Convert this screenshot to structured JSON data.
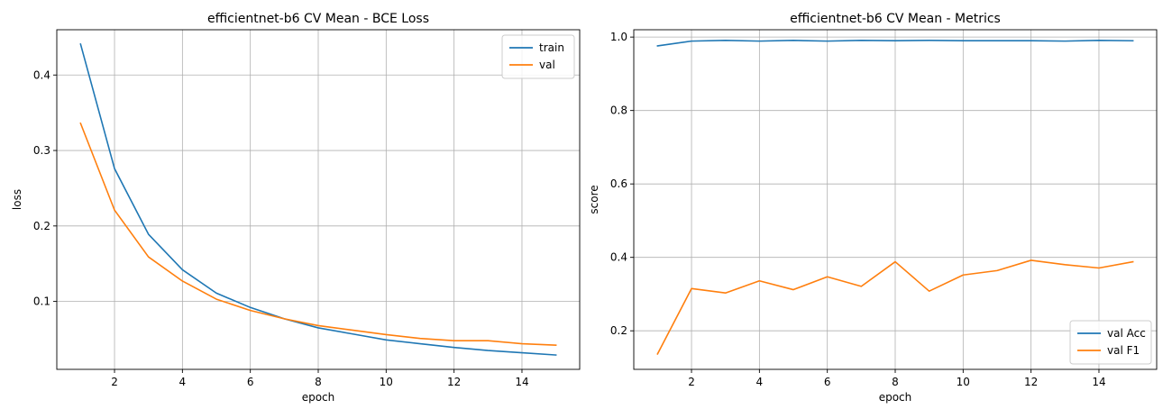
{
  "chart_data": [
    {
      "type": "line",
      "title": "efficientnet-b6 CV Mean - BCE Loss",
      "xlabel": "epoch",
      "ylabel": "loss",
      "xlim": [
        0.3,
        15.7
      ],
      "ylim": [
        0.01,
        0.46
      ],
      "xticks": [
        2,
        4,
        6,
        8,
        10,
        12,
        14
      ],
      "yticks": [
        0.1,
        0.2,
        0.3,
        0.4
      ],
      "grid": true,
      "legend_position": "top-right",
      "x": [
        1,
        2,
        3,
        4,
        5,
        6,
        7,
        8,
        9,
        10,
        11,
        12,
        13,
        14,
        15
      ],
      "series": [
        {
          "name": "train",
          "color": "#1f77b4",
          "values": [
            0.441,
            0.276,
            0.189,
            0.142,
            0.111,
            0.092,
            0.077,
            0.065,
            0.057,
            0.049,
            0.044,
            0.039,
            0.035,
            0.032,
            0.029
          ]
        },
        {
          "name": "val",
          "color": "#ff7f0e",
          "values": [
            0.336,
            0.221,
            0.159,
            0.127,
            0.103,
            0.088,
            0.077,
            0.068,
            0.062,
            0.056,
            0.051,
            0.048,
            0.048,
            0.044,
            0.042
          ]
        }
      ]
    },
    {
      "type": "line",
      "title": "efficientnet-b6 CV Mean - Metrics",
      "xlabel": "epoch",
      "ylabel": "score",
      "xlim": [
        0.3,
        15.7
      ],
      "ylim": [
        0.095,
        1.02
      ],
      "xticks": [
        2,
        4,
        6,
        8,
        10,
        12,
        14
      ],
      "yticks": [
        0.2,
        0.4,
        0.6,
        0.8,
        1.0
      ],
      "grid": true,
      "legend_position": "bottom-right",
      "x": [
        1,
        2,
        3,
        4,
        5,
        6,
        7,
        8,
        9,
        10,
        11,
        12,
        13,
        14,
        15
      ],
      "series": [
        {
          "name": "val Acc",
          "color": "#1f77b4",
          "values": [
            0.976,
            0.989,
            0.991,
            0.989,
            0.991,
            0.989,
            0.991,
            0.99,
            0.991,
            0.99,
            0.99,
            0.99,
            0.989,
            0.991,
            0.99
          ]
        },
        {
          "name": "val F1",
          "color": "#ff7f0e",
          "values": [
            0.137,
            0.315,
            0.303,
            0.336,
            0.312,
            0.347,
            0.321,
            0.388,
            0.308,
            0.352,
            0.364,
            0.392,
            0.38,
            0.371,
            0.388
          ]
        }
      ]
    }
  ]
}
